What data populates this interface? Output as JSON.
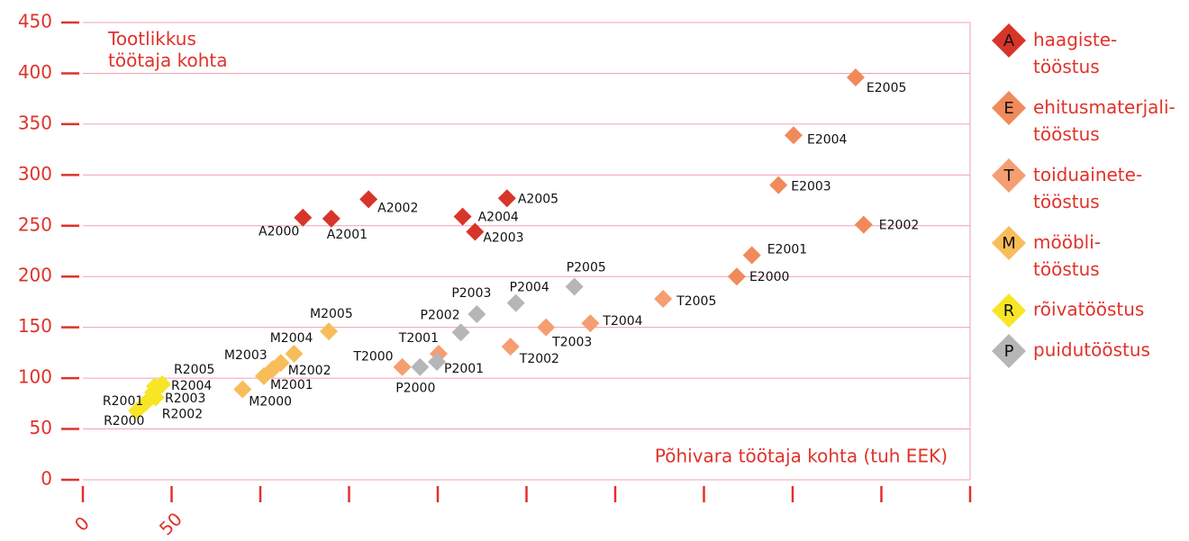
{
  "chart_data": {
    "type": "scatter",
    "title": "Tootlikkus\ntöötaja kohta",
    "x_label": "Põhivara töötaja kohta (tuh EEK)",
    "xlim": [
      0,
      500
    ],
    "xticks": [
      0,
      50,
      {
        "value": 100,
        "label": null
      },
      {
        "value": 150,
        "label": null
      },
      {
        "value": 200,
        "label": null
      },
      {
        "value": 250,
        "label": null
      },
      {
        "value": 300,
        "label": null
      },
      {
        "value": 350,
        "label": null
      },
      {
        "value": 400,
        "label": null
      },
      {
        "value": 450,
        "label": null
      },
      {
        "value": 500,
        "label": null
      }
    ],
    "ylim": [
      0,
      450
    ],
    "yticks": [
      0,
      50,
      100,
      150,
      200,
      250,
      300,
      350,
      400,
      450
    ],
    "grid": true,
    "legend": "right",
    "series": [
      {
        "name": "haagiste-\ntööstus",
        "code": "A",
        "color": "#d8352a",
        "labels": [
          "A2000",
          "A2001",
          "A2002",
          "A2003",
          "A2004",
          "A2005"
        ],
        "x": [
          124,
          140,
          161,
          221,
          214,
          239
        ],
        "values": [
          258,
          257,
          276,
          244,
          259,
          277
        ]
      },
      {
        "name": "ehitusmaterjali-\ntööstus",
        "code": "E",
        "color": "#f08a5a",
        "labels": [
          "E2000",
          "E2001",
          "E2002",
          "E2003",
          "E2004",
          "E2005"
        ],
        "x": [
          368.5,
          377,
          440,
          392,
          400.5,
          435.5
        ],
        "values": [
          200,
          221,
          251,
          290,
          339,
          396
        ]
      },
      {
        "name": "toiduainete-\ntööstus",
        "code": "T",
        "color": "#f59e72",
        "labels": [
          "T2000",
          "T2001",
          "T2002",
          "T2003",
          "T2004",
          "T2005"
        ],
        "x": [
          180,
          200.5,
          241,
          261,
          286,
          327
        ],
        "values": [
          111,
          124,
          131,
          150,
          154,
          178
        ]
      },
      {
        "name": "mööbli-\ntööstus",
        "code": "M",
        "color": "#f8bd5a",
        "labels": [
          "M2000",
          "M2001",
          "M2002",
          "M2003",
          "M2004",
          "M2005"
        ],
        "x": [
          90,
          102,
          107,
          111.5,
          119,
          138.6
        ],
        "values": [
          89,
          102,
          109,
          115,
          124,
          146
        ]
      },
      {
        "name": "rõivatööstus",
        "code": "R",
        "color": "#f7e526",
        "labels": [
          "R2000",
          "R2001",
          "R2002",
          "R2003",
          "R2004",
          "R2005"
        ],
        "x": [
          30.5,
          35.5,
          41,
          39.6,
          40.6,
          44.7
        ],
        "values": [
          68,
          76,
          81,
          86,
          92,
          94
        ]
      },
      {
        "name": "puidutööstus",
        "code": "P",
        "color": "#b6b6b8",
        "labels": [
          "P2000",
          "P2001",
          "P2002",
          "P2003",
          "P2004",
          "P2005"
        ],
        "x": [
          190,
          199.5,
          213,
          222,
          244,
          277
        ],
        "values": [
          111,
          116,
          145,
          163,
          174,
          190
        ]
      }
    ]
  }
}
